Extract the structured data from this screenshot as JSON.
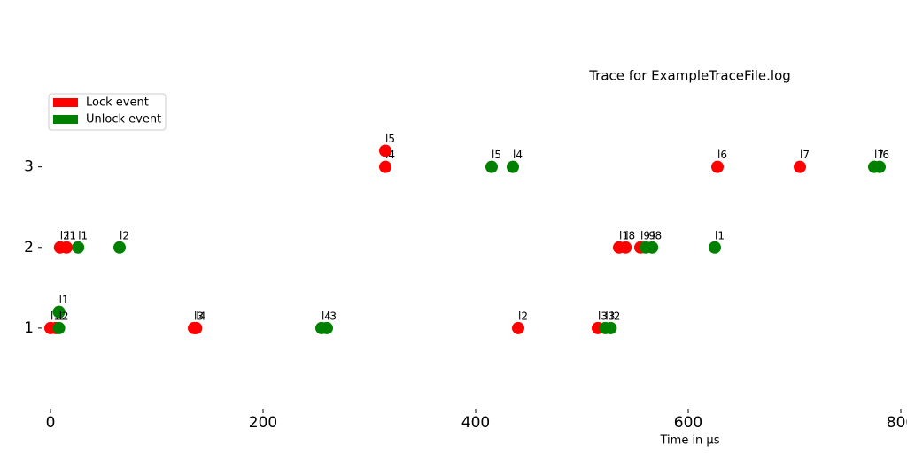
{
  "chart_data": {
    "type": "scatter",
    "title": "Trace for ExampleTraceFile.log",
    "x_label": "Time in µs",
    "xlim": [
      0,
      800
    ],
    "xticks": [
      0,
      200,
      400,
      600,
      800
    ],
    "ylim": [
      0,
      3.6
    ],
    "yticks": [
      1,
      2,
      3
    ],
    "legend": "upper left",
    "series": [
      {
        "name": "Lock event",
        "color": "#ff0000",
        "x": [
          315,
          315,
          627.5,
          705,
          9,
          15,
          535,
          541,
          555,
          0,
          5,
          135,
          137,
          440,
          515
        ],
        "values": [
          3,
          3.2,
          3,
          3,
          2,
          2,
          2,
          2,
          2,
          1,
          1,
          1,
          1,
          1,
          1
        ],
        "point_labels": [
          "l4",
          "l5",
          "l6",
          "l7",
          "l2",
          "l1",
          "l1",
          "l8",
          "l9",
          "l1",
          "l2",
          "l3",
          "l4",
          "l2",
          "l3"
        ]
      },
      {
        "name": "Unlock event",
        "color": "#008000",
        "x": [
          415,
          435,
          775,
          780,
          26,
          65,
          560,
          566,
          625,
          8,
          8,
          255,
          260,
          522,
          527
        ],
        "values": [
          3,
          3,
          3,
          3,
          2,
          2,
          2,
          2,
          2,
          1.2,
          1,
          1,
          1,
          1,
          1
        ],
        "point_labels": [
          "l5",
          "l4",
          "l7",
          "l6",
          "l1",
          "l2",
          "l9",
          "l8",
          "l1",
          "l1",
          "l2",
          "l4",
          "l3",
          "l3",
          "l2"
        ]
      }
    ]
  }
}
